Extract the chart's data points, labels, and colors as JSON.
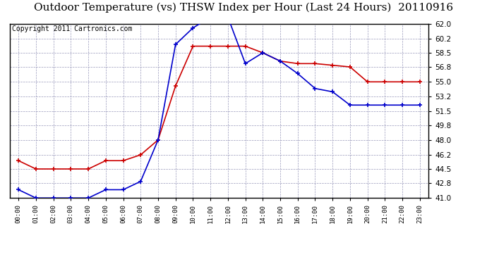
{
  "title": "Outdoor Temperature (vs) THSW Index per Hour (Last 24 Hours)  20110916",
  "copyright": "Copyright 2011 Cartronics.com",
  "hours": [
    "00:00",
    "01:00",
    "02:00",
    "03:00",
    "04:00",
    "05:00",
    "06:00",
    "07:00",
    "08:00",
    "09:00",
    "10:00",
    "11:00",
    "12:00",
    "13:00",
    "14:00",
    "15:00",
    "16:00",
    "17:00",
    "18:00",
    "19:00",
    "20:00",
    "21:00",
    "22:00",
    "23:00"
  ],
  "temp_red": [
    45.5,
    44.5,
    44.5,
    44.5,
    44.5,
    45.5,
    45.5,
    46.2,
    48.0,
    54.5,
    59.3,
    59.3,
    59.3,
    59.3,
    58.5,
    57.5,
    57.2,
    57.2,
    57.0,
    56.8,
    55.0,
    55.0,
    55.0,
    55.0
  ],
  "thsw_blue": [
    42.0,
    41.0,
    41.0,
    41.0,
    41.0,
    42.0,
    42.0,
    43.0,
    48.0,
    59.5,
    61.5,
    62.8,
    62.8,
    57.2,
    58.5,
    57.5,
    56.0,
    54.2,
    53.8,
    52.2,
    52.2,
    52.2,
    52.2,
    52.2
  ],
  "ylim": [
    41.0,
    62.0
  ],
  "yticks": [
    41.0,
    42.8,
    44.5,
    46.2,
    48.0,
    49.8,
    51.5,
    53.2,
    55.0,
    56.8,
    58.5,
    60.2,
    62.0
  ],
  "bg_color": "#ffffff",
  "plot_bg": "#ffffff",
  "grid_color": "#9999bb",
  "red_color": "#cc0000",
  "blue_color": "#0000cc",
  "title_fontsize": 11,
  "copyright_fontsize": 7
}
